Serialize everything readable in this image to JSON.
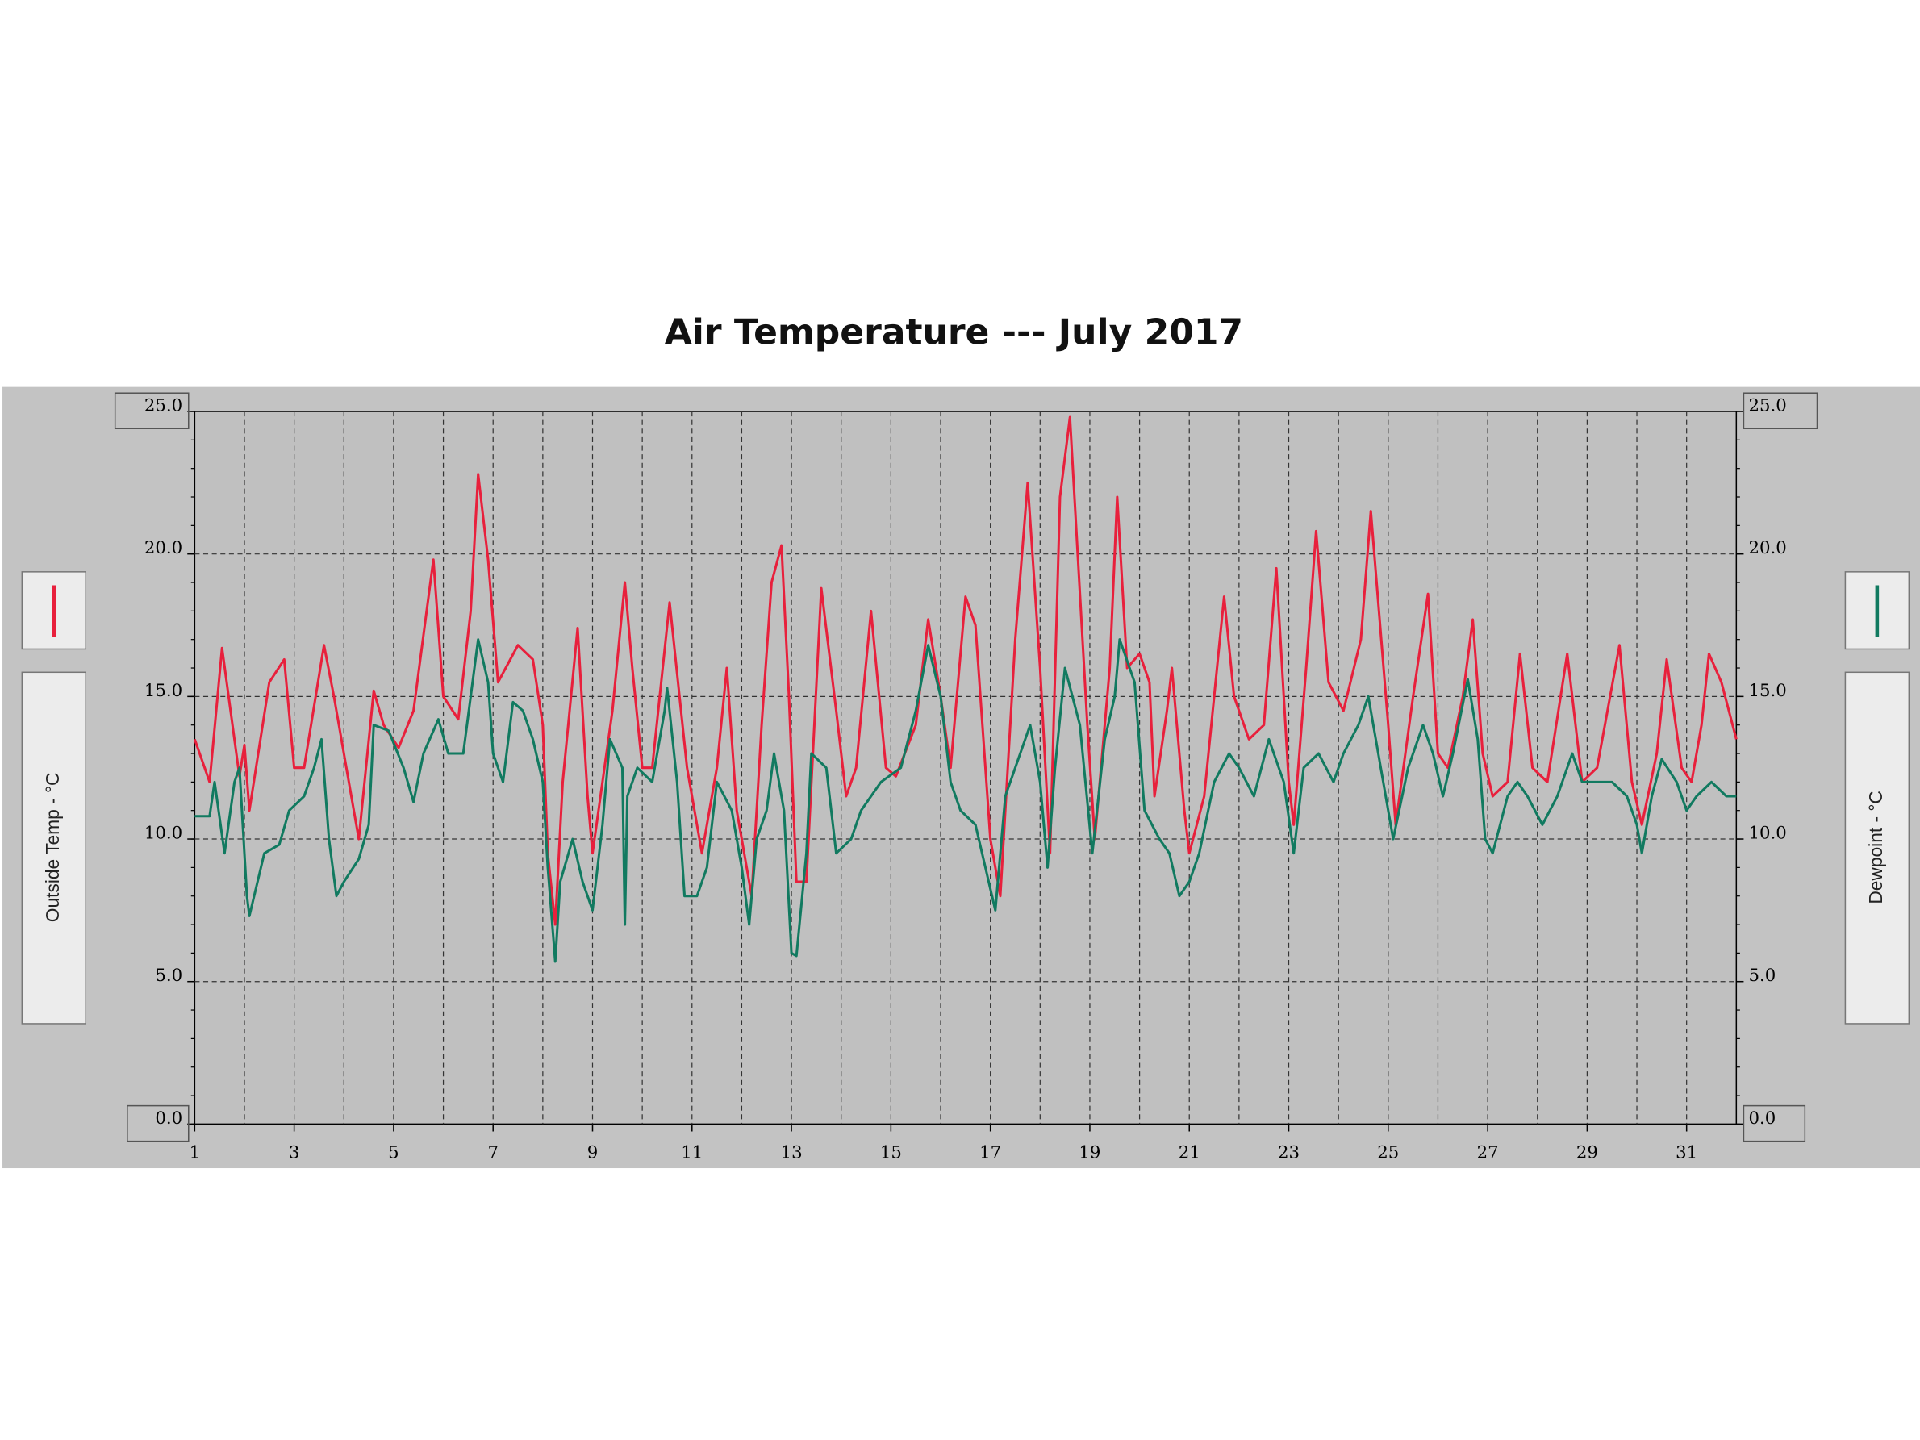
{
  "chart_data": {
    "type": "line",
    "title": "Air Temperature --- July 2017",
    "ylabel": "Outside Temp - °C",
    "y2label": "Dewpoint - °C",
    "xlim": [
      1,
      32
    ],
    "xticks": [
      1,
      3,
      5,
      7,
      9,
      11,
      13,
      15,
      17,
      19,
      21,
      23,
      25,
      27,
      29,
      31
    ],
    "ylim": [
      0,
      25
    ],
    "yticks": [
      {
        "value": 0,
        "label": "0.0"
      },
      {
        "value": 5,
        "label": "5.0"
      },
      {
        "value": 10,
        "label": "10.0"
      },
      {
        "value": 15,
        "label": "15.0"
      },
      {
        "value": 20,
        "label": "20.0"
      },
      {
        "value": 25,
        "label": "25.0"
      }
    ],
    "y2lim": [
      0,
      25
    ],
    "y2ticks": [
      {
        "value": 0,
        "label": "0.0"
      },
      {
        "value": 5,
        "label": "5.0"
      },
      {
        "value": 10,
        "label": "10.0"
      },
      {
        "value": 15,
        "label": "15.0"
      },
      {
        "value": 20,
        "label": "20.0"
      },
      {
        "value": 25,
        "label": "25.0"
      }
    ],
    "grid": true,
    "series": [
      {
        "name": "Outside Temp",
        "color": "#e8203c",
        "x": [
          1.0,
          1.3,
          1.55,
          1.9,
          2.0,
          2.1,
          2.5,
          2.8,
          3.0,
          3.2,
          3.6,
          3.8,
          4.2,
          4.3,
          4.6,
          4.8,
          5.1,
          5.4,
          5.8,
          6.0,
          6.3,
          6.55,
          6.7,
          6.9,
          7.1,
          7.5,
          7.8,
          8.0,
          8.1,
          8.25,
          8.4,
          8.7,
          8.9,
          9.0,
          9.4,
          9.65,
          9.8,
          10.0,
          10.2,
          10.55,
          10.9,
          11.2,
          11.5,
          11.7,
          11.9,
          12.2,
          12.4,
          12.6,
          12.8,
          12.95,
          13.1,
          13.3,
          13.6,
          13.9,
          14.1,
          14.3,
          14.6,
          14.9,
          15.1,
          15.5,
          15.75,
          16.0,
          16.2,
          16.5,
          16.7,
          17.0,
          17.2,
          17.5,
          17.75,
          18.0,
          18.2,
          18.4,
          18.6,
          18.95,
          19.1,
          19.4,
          19.55,
          19.75,
          20.0,
          20.2,
          20.3,
          20.55,
          20.65,
          20.9,
          21.0,
          21.3,
          21.7,
          21.9,
          22.2,
          22.5,
          22.75,
          23.0,
          23.1,
          23.35,
          23.55,
          23.8,
          24.1,
          24.45,
          24.65,
          25.0,
          25.15,
          25.5,
          25.8,
          26.0,
          26.2,
          26.5,
          26.7,
          26.9,
          27.1,
          27.4,
          27.65,
          27.9,
          28.2,
          28.6,
          28.9,
          29.2,
          29.65,
          29.9,
          30.1,
          30.4,
          30.6,
          30.9,
          31.1,
          31.3,
          31.45,
          31.7,
          32.0
        ],
        "values": [
          13.5,
          12,
          16.7,
          12.2,
          13.3,
          11,
          15.5,
          16.3,
          12.5,
          12.5,
          16.8,
          15,
          11,
          10,
          15.2,
          14,
          13.2,
          14.5,
          19.8,
          15,
          14.2,
          18,
          22.8,
          19.8,
          15.5,
          16.8,
          16.3,
          14,
          9.5,
          7,
          12,
          17.4,
          11.5,
          9.5,
          14.5,
          19,
          16,
          12.5,
          12.5,
          18.3,
          12.5,
          9.5,
          12.5,
          16,
          11,
          8,
          14,
          19,
          20.3,
          15,
          8.5,
          8.5,
          18.8,
          14.5,
          11.5,
          12.5,
          18,
          12.5,
          12.2,
          14,
          17.7,
          15,
          12.5,
          18.5,
          17.5,
          10,
          8,
          17,
          22.5,
          16,
          9.5,
          22,
          24.8,
          14,
          10,
          16,
          22,
          16,
          16.5,
          15.5,
          11.5,
          14.5,
          16,
          11,
          9.5,
          11.5,
          18.5,
          15,
          13.5,
          14,
          19.5,
          12,
          10.5,
          16,
          20.8,
          15.5,
          14.5,
          17,
          21.5,
          14,
          10.5,
          15,
          18.6,
          13,
          12.5,
          15,
          17.7,
          13,
          11.5,
          12,
          16.5,
          12.5,
          12,
          16.5,
          12,
          12.5,
          16.8,
          12,
          10.5,
          13,
          16.3,
          12.5,
          12,
          14,
          16.5,
          15.5,
          13.5
        ]
      },
      {
        "name": "Dewpoint",
        "color": "#117a60",
        "axis": "y2",
        "x": [
          1.0,
          1.3,
          1.4,
          1.6,
          1.8,
          1.9,
          2.05,
          2.1,
          2.4,
          2.7,
          2.9,
          3.2,
          3.4,
          3.55,
          3.7,
          3.85,
          4.0,
          4.3,
          4.5,
          4.6,
          4.9,
          5.2,
          5.4,
          5.6,
          5.9,
          6.1,
          6.4,
          6.7,
          6.9,
          7.0,
          7.2,
          7.4,
          7.6,
          7.8,
          8.0,
          8.1,
          8.25,
          8.35,
          8.6,
          8.8,
          9.0,
          9.2,
          9.35,
          9.6,
          9.65,
          9.7,
          9.9,
          10.2,
          10.45,
          10.5,
          10.7,
          10.85,
          11.1,
          11.3,
          11.5,
          11.8,
          12.0,
          12.15,
          12.3,
          12.5,
          12.65,
          12.85,
          13.0,
          13.1,
          13.3,
          13.4,
          13.7,
          13.9,
          14.2,
          14.4,
          14.6,
          14.8,
          15.2,
          15.5,
          15.75,
          16.0,
          16.2,
          16.4,
          16.7,
          16.9,
          17.1,
          17.3,
          17.5,
          17.8,
          18.0,
          18.15,
          18.3,
          18.5,
          18.8,
          19.05,
          19.3,
          19.5,
          19.6,
          19.9,
          20.1,
          20.4,
          20.6,
          20.8,
          21.0,
          21.2,
          21.5,
          21.8,
          22.0,
          22.3,
          22.6,
          22.9,
          23.1,
          23.3,
          23.6,
          23.9,
          24.1,
          24.4,
          24.6,
          24.9,
          25.1,
          25.4,
          25.7,
          25.9,
          26.1,
          26.3,
          26.6,
          26.8,
          26.95,
          27.1,
          27.4,
          27.6,
          27.8,
          28.1,
          28.4,
          28.7,
          28.9,
          29.2,
          29.5,
          29.8,
          30.0,
          30.1,
          30.3,
          30.5,
          30.8,
          31.0,
          31.2,
          31.5,
          31.8,
          32.0
        ],
        "values": [
          10.8,
          10.8,
          12,
          9.5,
          12,
          12.5,
          8,
          7.3,
          9.5,
          9.8,
          11,
          11.5,
          12.5,
          13.5,
          10,
          8,
          8.5,
          9.3,
          10.5,
          14,
          13.8,
          12.5,
          11.3,
          13,
          14.2,
          13,
          13,
          17,
          15.5,
          13,
          12,
          14.8,
          14.5,
          13.5,
          12,
          9,
          5.7,
          8.5,
          10,
          8.5,
          7.5,
          10.5,
          13.5,
          12.5,
          7,
          11.5,
          12.5,
          12,
          14.5,
          15.3,
          12,
          8,
          8,
          9,
          12,
          11,
          9,
          7,
          10,
          11,
          13,
          11,
          6,
          5.9,
          9.5,
          13,
          12.5,
          9.5,
          10,
          11,
          11.5,
          12,
          12.5,
          14.5,
          16.8,
          15,
          12,
          11,
          10.5,
          9,
          7.5,
          11.5,
          12.5,
          14,
          12,
          9,
          12.5,
          16,
          14,
          9.5,
          13.5,
          15,
          17,
          15.5,
          11,
          10,
          9.5,
          8,
          8.5,
          9.5,
          12,
          13,
          12.5,
          11.5,
          13.5,
          12,
          9.5,
          12.5,
          13,
          12,
          13,
          14,
          15,
          12,
          10,
          12.5,
          14,
          13,
          11.5,
          13,
          15.6,
          13.5,
          10,
          9.5,
          11.5,
          12,
          11.5,
          10.5,
          11.5,
          13,
          12,
          12,
          12,
          11.5,
          10.5,
          9.5,
          11.5,
          12.8,
          12,
          11,
          11.5,
          12,
          11.5,
          11.5
        ]
      }
    ]
  }
}
